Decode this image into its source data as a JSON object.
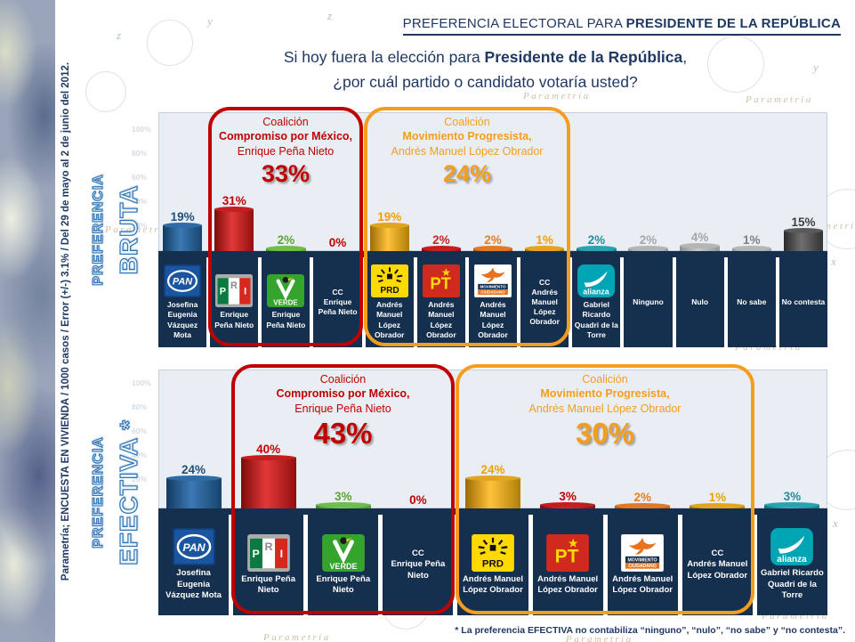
{
  "header": {
    "kicker_regular": "PREFERENCIA ELECTORAL PARA ",
    "kicker_bold": "PRESIDENTE DE LA REPÚBLICA",
    "question_line1_pre": "Si hoy fuera la elección para ",
    "question_line1_bold": "Presidente de la República",
    "question_line1_post": ",",
    "question_line2": "¿por cuál partido o candidato votaría usted?"
  },
  "sidebar": {
    "caption": "Parametría; ENCUESTA EN VIVIENDA / 1000 casos / Error (+/-) 3.1% / Del 29 de mayo al 2 de junio del 2012."
  },
  "footnote": "* La preferencia EFECTIVA no contabiliza “ninguno”, “nulo”, “no sabe” y “no contesta”.",
  "decor": {
    "watermark": "Parametría",
    "axis_x": "x",
    "axis_y": "y",
    "axis_z": "z",
    "ticks": [
      "100%",
      "80%",
      "60%",
      "40%",
      "20%"
    ]
  },
  "colors": {
    "navy_text": "#1F3864",
    "label_band": "#152F4E",
    "coalition_red": "#C00000",
    "coalition_orange": "#F59D1E",
    "plot_background": "#E9EEF5"
  },
  "charts": {
    "bruta": {
      "section_label_line1": "PREFERENCIA",
      "section_label_line2": "BRUTA",
      "columns": [
        {
          "code": "pan",
          "candidate": "Josefina Eugenia Vázquez Mota",
          "pct": 19,
          "value_label": "19%",
          "bar": "blue",
          "value_color": "#1F4E79"
        },
        {
          "code": "pri",
          "candidate": "Enrique Peña Nieto",
          "pct": 31,
          "value_label": "31%",
          "bar": "red",
          "value_color": "#C00000"
        },
        {
          "code": "verde",
          "candidate": "Enrique Peña Nieto",
          "pct": 2,
          "value_label": "2%",
          "bar": "green",
          "value_color": "#59A631"
        },
        {
          "code": "cc-epn",
          "candidate": "CC\nEnrique Peña Nieto",
          "pct": 0,
          "value_label": "0%",
          "bar": "red",
          "value_color": "#C00000"
        },
        {
          "code": "prd",
          "candidate": "Andrés Manuel López Obrador",
          "pct": 19,
          "value_label": "19%",
          "bar": "gold",
          "value_color": "#F2A000"
        },
        {
          "code": "pt",
          "candidate": "Andrés Manuel López Obrador",
          "pct": 2,
          "value_label": "2%",
          "bar": "red",
          "value_color": "#D02020"
        },
        {
          "code": "mc",
          "candidate": "Andrés Manuel López Obrador",
          "pct": 2,
          "value_label": "2%",
          "bar": "orange",
          "value_color": "#E87C1E"
        },
        {
          "code": "cc-amlo",
          "candidate": "CC\nAndrés Manuel López Obrador",
          "pct": 1,
          "value_label": "1%",
          "bar": "gold",
          "value_color": "#F2A000"
        },
        {
          "code": "alianza",
          "candidate": "Gabriel Ricardo Quadri de la Torre",
          "pct": 2,
          "value_label": "2%",
          "bar": "teal",
          "value_color": "#1F8FA0"
        },
        {
          "code": "ninguno",
          "candidate": "Ninguno",
          "pct": 2,
          "value_label": "2%",
          "bar": "gray",
          "value_color": "#A6A6A6"
        },
        {
          "code": "nulo",
          "candidate": "Nulo",
          "pct": 4,
          "value_label": "4%",
          "bar": "gray",
          "value_color": "#A6A6A6"
        },
        {
          "code": "no-sabe",
          "candidate": "No sabe",
          "pct": 1,
          "value_label": "1%",
          "bar": "gray",
          "value_color": "#808080"
        },
        {
          "code": "no-contesta",
          "candidate": "No contesta",
          "pct": 15,
          "value_label": "15%",
          "bar": "darkgray",
          "value_color": "#3F3F3F"
        }
      ],
      "coalitions": [
        {
          "from": 1,
          "to": 3,
          "color": "#C00000",
          "line1": "Coalición",
          "line2": "Compromiso por México,",
          "line3": "Enrique Peña Nieto",
          "value_label": "33%"
        },
        {
          "from": 4,
          "to": 7,
          "color": "#F59D1E",
          "line1": "Coalición",
          "line2": "Movimiento Progresista,",
          "line3": "Andrés Manuel López Obrador",
          "value_label": "24%"
        }
      ]
    },
    "efectiva": {
      "section_label_line1": "PREFERENCIA",
      "section_label_line2": "EFECTIVA *",
      "columns": [
        {
          "code": "pan",
          "candidate": "Josefina Eugenia Vázquez Mota",
          "pct": 24,
          "value_label": "24%",
          "bar": "blue",
          "value_color": "#1F4E79"
        },
        {
          "code": "pri",
          "candidate": "Enrique Peña Nieto",
          "pct": 40,
          "value_label": "40%",
          "bar": "red",
          "value_color": "#C00000"
        },
        {
          "code": "verde",
          "candidate": "Enrique Peña Nieto",
          "pct": 3,
          "value_label": "3%",
          "bar": "green",
          "value_color": "#59A631"
        },
        {
          "code": "cc-epn",
          "candidate": "CC\nEnrique Peña Nieto",
          "pct": 0,
          "value_label": "0%",
          "bar": "red",
          "value_color": "#C00000"
        },
        {
          "code": "prd",
          "candidate": "Andrés Manuel López Obrador",
          "pct": 24,
          "value_label": "24%",
          "bar": "gold",
          "value_color": "#F2A000"
        },
        {
          "code": "pt",
          "candidate": "Andrés Manuel López Obrador",
          "pct": 3,
          "value_label": "3%",
          "bar": "red",
          "value_color": "#C00000"
        },
        {
          "code": "mc",
          "candidate": "Andrés Manuel López Obrador",
          "pct": 2,
          "value_label": "2%",
          "bar": "orange",
          "value_color": "#E87C1E"
        },
        {
          "code": "cc-amlo",
          "candidate": "CC\nAndrés Manuel López Obrador",
          "pct": 1,
          "value_label": "1%",
          "bar": "gold",
          "value_color": "#F2A000"
        },
        {
          "code": "alianza",
          "candidate": "Gabriel Ricardo Quadri de la Torre",
          "pct": 3,
          "value_label": "3%",
          "bar": "teal",
          "value_color": "#1F8FA0"
        }
      ],
      "coalitions": [
        {
          "from": 1,
          "to": 3,
          "color": "#C00000",
          "line1": "Coalición",
          "line2": "Compromiso por México,",
          "line3": "Enrique Peña Nieto",
          "value_label": "43%"
        },
        {
          "from": 4,
          "to": 7,
          "color": "#F59D1E",
          "line1": "Coalición",
          "line2": "Movimiento Progresista,",
          "line3": "Andrés Manuel López Obrador",
          "value_label": "30%"
        }
      ]
    }
  },
  "chart_data": [
    {
      "type": "bar",
      "title": "Preferencia bruta",
      "categories": [
        "PAN – Josefina Eugenia Vázquez Mota",
        "PRI – Enrique Peña Nieto",
        "VERDE – Enrique Peña Nieto",
        "CC – Enrique Peña Nieto",
        "PRD – Andrés Manuel López Obrador",
        "PT – Andrés Manuel López Obrador",
        "Movimiento Ciudadano – Andrés Manuel López Obrador",
        "CC – Andrés Manuel López Obrador",
        "Nueva Alianza – Gabriel Ricardo Quadri de la Torre",
        "Ninguno",
        "Nulo",
        "No sabe",
        "No contesta"
      ],
      "values": [
        19,
        31,
        2,
        0,
        19,
        2,
        2,
        1,
        2,
        2,
        4,
        1,
        15
      ],
      "annotations": [
        {
          "label": "Coalición Compromiso por México, Enrique Peña Nieto",
          "value": 33
        },
        {
          "label": "Coalición Movimiento Progresista, Andrés Manuel López Obrador",
          "value": 24
        }
      ],
      "xlabel": "",
      "ylabel": "",
      "ylim": [
        0,
        100
      ],
      "grid": false,
      "legend": "none"
    },
    {
      "type": "bar",
      "title": "Preferencia efectiva",
      "categories": [
        "PAN – Josefina Eugenia Vázquez Mota",
        "PRI – Enrique Peña Nieto",
        "VERDE – Enrique Peña Nieto",
        "CC – Enrique Peña Nieto",
        "PRD – Andrés Manuel López Obrador",
        "PT – Andrés Manuel López Obrador",
        "Movimiento Ciudadano – Andrés Manuel López Obrador",
        "CC – Andrés Manuel López Obrador",
        "Nueva Alianza – Gabriel Ricardo Quadri de la Torre"
      ],
      "values": [
        24,
        40,
        3,
        0,
        24,
        3,
        2,
        1,
        3
      ],
      "annotations": [
        {
          "label": "Coalición Compromiso por México, Enrique Peña Nieto",
          "value": 43
        },
        {
          "label": "Coalición Movimiento Progresista, Andrés Manuel López Obrador",
          "value": 30
        }
      ],
      "xlabel": "",
      "ylabel": "",
      "ylim": [
        0,
        100
      ],
      "grid": false,
      "legend": "none"
    }
  ]
}
